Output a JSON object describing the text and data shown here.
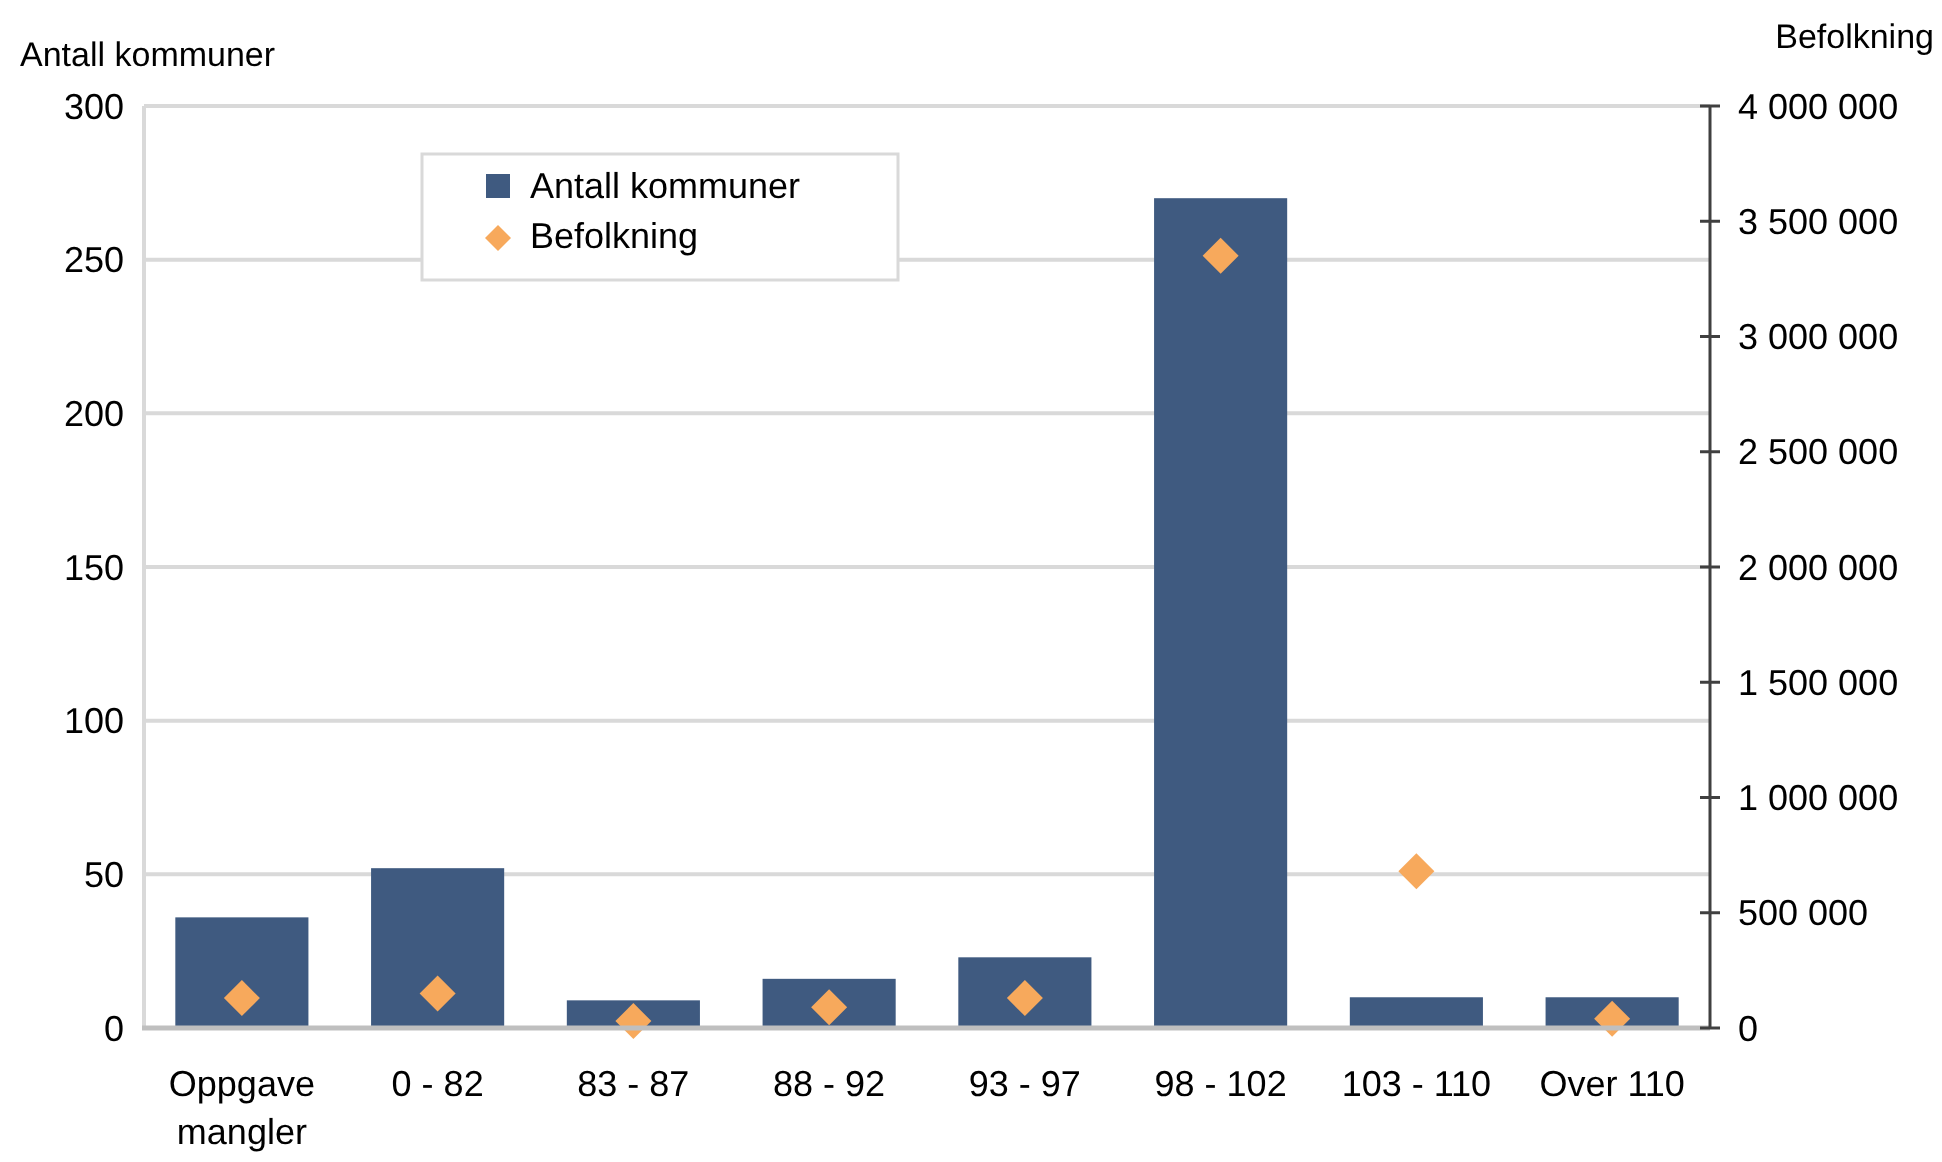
{
  "chart_data": {
    "type": "bar",
    "categories": [
      "Oppgave mangler",
      "0 - 82",
      "83 - 87",
      "88 - 92",
      "93 - 97",
      "98 - 102",
      "103 - 110",
      "Over 110"
    ],
    "ylabel": "Antall kommuner",
    "y2label": "Befolkning",
    "ylim": [
      0,
      300
    ],
    "yticks": [
      0,
      50,
      100,
      150,
      200,
      250,
      300
    ],
    "y2lim": [
      0,
      4000000
    ],
    "y2ticks": [
      0,
      {
        "value": 500000,
        "label": "500 000"
      },
      {
        "value": 1000000,
        "label": "1 000 000"
      },
      {
        "value": 1500000,
        "label": "1 500 000"
      },
      {
        "value": 2000000,
        "label": "2 000 000"
      },
      {
        "value": 2500000,
        "label": "2 500 000"
      },
      {
        "value": 3000000,
        "label": "3 000 000"
      },
      {
        "value": 3500000,
        "label": "3 500 000"
      },
      {
        "value": 4000000,
        "label": "4 000 000"
      }
    ],
    "grid": "y",
    "legend": "top left",
    "series": [
      {
        "name": "Antall kommuner",
        "type": "bar",
        "color": "#3f5a80",
        "values": [
          36,
          52,
          9,
          16,
          23,
          270,
          10,
          10
        ]
      },
      {
        "name": "Befolkning",
        "type": "scatter",
        "axis": "y2",
        "marker": "diamond",
        "color": "#f7a95c",
        "values": [
          130000,
          150000,
          30000,
          90000,
          130000,
          3350000,
          680000,
          40000
        ]
      }
    ]
  }
}
